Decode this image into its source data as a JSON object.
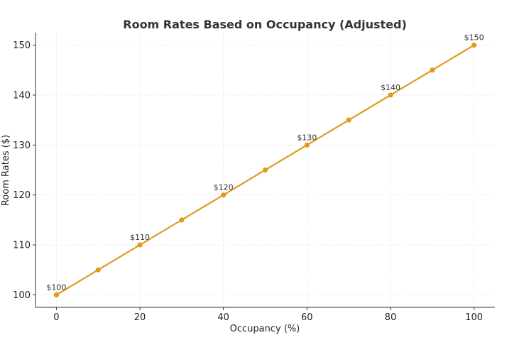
{
  "chart_data": {
    "type": "line",
    "title": "Room Rates Based on Occupancy (Adjusted)",
    "xlabel": "Occupancy (%)",
    "ylabel": "Room Rates ($)",
    "x": [
      0,
      10,
      20,
      30,
      40,
      50,
      60,
      70,
      80,
      90,
      100
    ],
    "series": [
      {
        "values": [
          100,
          105,
          110,
          115,
          120,
          125,
          130,
          135,
          140,
          145,
          150
        ],
        "color": "#e09b1e"
      }
    ],
    "xlim": [
      -5,
      105
    ],
    "ylim": [
      97.5,
      152.5
    ],
    "xticks": [
      0,
      20,
      40,
      60,
      80,
      100
    ],
    "yticks": [
      100,
      110,
      120,
      130,
      140,
      150
    ],
    "grid": true,
    "annotations": [
      {
        "x": 0,
        "y": 100,
        "text": "$100"
      },
      {
        "x": 20,
        "y": 110,
        "text": "$110"
      },
      {
        "x": 40,
        "y": 120,
        "text": "$120"
      },
      {
        "x": 60,
        "y": 130,
        "text": "$130"
      },
      {
        "x": 80,
        "y": 140,
        "text": "$140"
      },
      {
        "x": 100,
        "y": 150,
        "text": "$150"
      }
    ]
  }
}
